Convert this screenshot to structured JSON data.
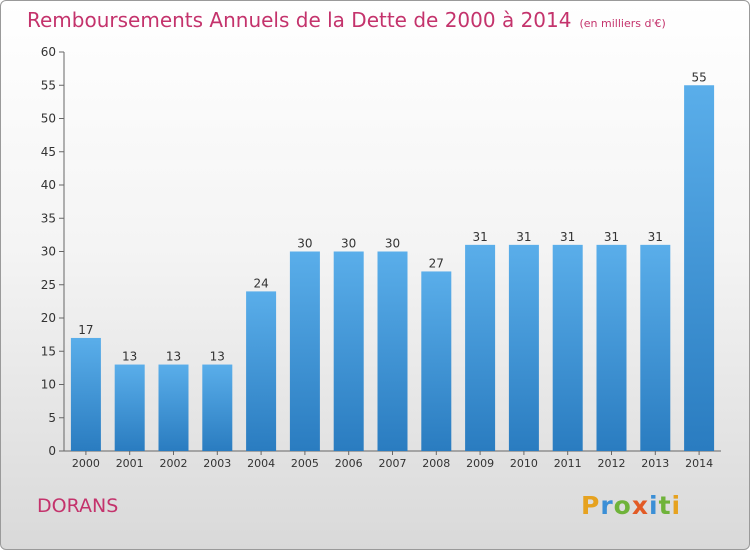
{
  "chart_data": {
    "type": "bar",
    "title": "Remboursements Annuels de la Dette de 2000 à 2014",
    "subtitle": "(en milliers d'€)",
    "categories": [
      "2000",
      "2001",
      "2002",
      "2003",
      "2004",
      "2005",
      "2006",
      "2007",
      "2008",
      "2009",
      "2010",
      "2011",
      "2012",
      "2013",
      "2014"
    ],
    "values": [
      17,
      13,
      13,
      13,
      24,
      30,
      30,
      30,
      27,
      31,
      31,
      31,
      31,
      31,
      55
    ],
    "ylim": [
      0,
      60
    ],
    "yticks": [
      0,
      5,
      10,
      15,
      20,
      25,
      30,
      35,
      40,
      45,
      50,
      55,
      60
    ],
    "grid": false,
    "bar_color": "#3f95da"
  },
  "footer": {
    "place": "DORANS",
    "brand": "Proxiti"
  },
  "colors": {
    "accent": "#c4336c",
    "bar_top": "#5aaeea",
    "bar_bottom": "#2a7cc0"
  }
}
